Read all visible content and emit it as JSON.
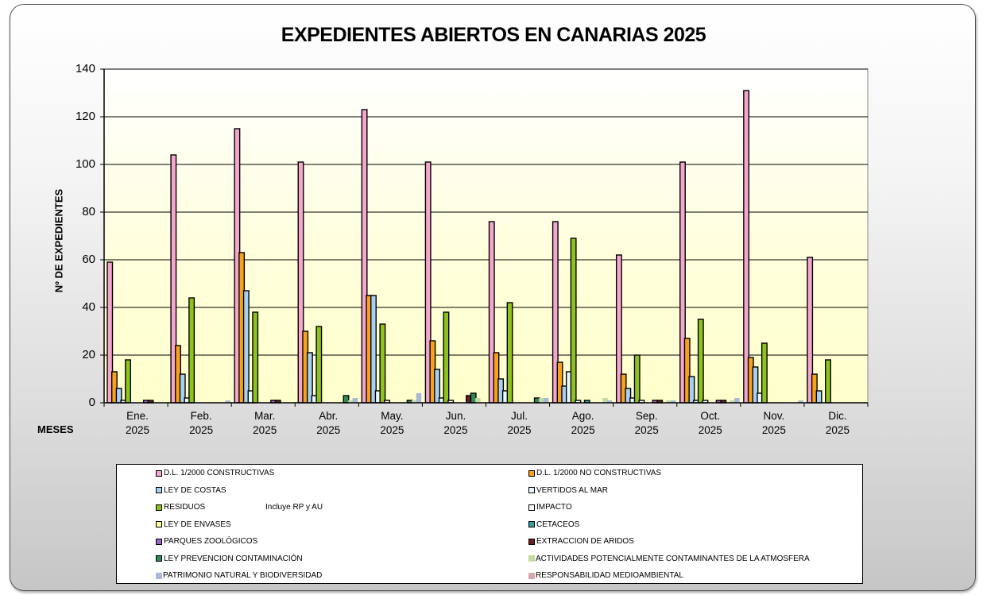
{
  "chart_data": {
    "type": "bar",
    "title": "EXPEDIENTES ABIERTOS EN CANARIAS 2025",
    "xlabel": "MESES",
    "ylabel": "Nº DE EXPEDIENTES",
    "ylim": [
      0,
      140
    ],
    "yticks": [
      0,
      20,
      40,
      60,
      80,
      100,
      120,
      140
    ],
    "grid": true,
    "legend_position": "bottom",
    "legend_note": "Incluye RP y AU",
    "categories": [
      {
        "line1": "Ene.",
        "line2": "2025"
      },
      {
        "line1": "Feb.",
        "line2": "2025"
      },
      {
        "line1": "Mar.",
        "line2": "2025"
      },
      {
        "line1": "Abr.",
        "line2": "2025"
      },
      {
        "line1": "May.",
        "line2": "2025"
      },
      {
        "line1": "Jun.",
        "line2": "2025"
      },
      {
        "line1": "Jul.",
        "line2": "2025"
      },
      {
        "line1": "Ago.",
        "line2": "2025"
      },
      {
        "line1": "Sep.",
        "line2": "2025"
      },
      {
        "line1": "Oct.",
        "line2": "2025"
      },
      {
        "line1": "Nov.",
        "line2": "2025"
      },
      {
        "line1": "Dic.",
        "line2": "2025"
      }
    ],
    "series": [
      {
        "name": "D.L. 1/2000 CONSTRUCTIVAS",
        "color": "#f4a6cf",
        "bordered": true,
        "values": [
          59,
          104,
          115,
          101,
          123,
          101,
          76,
          76,
          62,
          101,
          131,
          61
        ]
      },
      {
        "name": "D.L. 1/2000 NO CONSTRUCTIVAS",
        "color": "#f7a21b",
        "bordered": true,
        "values": [
          13,
          24,
          63,
          30,
          45,
          26,
          21,
          17,
          12,
          27,
          19,
          12
        ]
      },
      {
        "name": "LEY DE COSTAS",
        "color": "#a8d0f0",
        "bordered": true,
        "values": [
          6,
          12,
          47,
          21,
          45,
          14,
          10,
          7,
          6,
          11,
          15,
          5
        ]
      },
      {
        "name": "VERTIDOS AL MAR",
        "color": "#e8f8ff",
        "bordered": true,
        "values": [
          1,
          2,
          5,
          3,
          5,
          2,
          5,
          13,
          2,
          1,
          4,
          0
        ]
      },
      {
        "name": "RESIDUOS",
        "color": "#8dc21f",
        "bordered": true,
        "values": [
          18,
          44,
          38,
          32,
          33,
          38,
          42,
          69,
          20,
          35,
          25,
          18
        ]
      },
      {
        "name": "IMPACTO",
        "color": "#ffffff",
        "bordered": true,
        "values": [
          0,
          0,
          0,
          0,
          1,
          1,
          0,
          1,
          1,
          1,
          0,
          0
        ]
      },
      {
        "name": "LEY DE ENVASES",
        "color": "#ffff99",
        "bordered": true,
        "values": [
          0,
          0,
          0,
          0,
          0,
          0,
          0,
          0,
          0,
          0,
          0,
          0
        ]
      },
      {
        "name": "CETACEOS",
        "color": "#33a0a0",
        "bordered": true,
        "values": [
          0,
          0,
          0,
          0,
          0,
          0,
          0,
          1,
          0,
          0,
          0,
          0
        ]
      },
      {
        "name": "PARQUES ZOOLÓGICOS",
        "color": "#9966cc",
        "bordered": true,
        "values": [
          1,
          0,
          1,
          0,
          0,
          0,
          0,
          0,
          1,
          1,
          0,
          0
        ]
      },
      {
        "name": "EXTRACCION DE ARIDOS",
        "color": "#6b2020",
        "bordered": true,
        "values": [
          1,
          0,
          1,
          0,
          0,
          3,
          0,
          0,
          1,
          1,
          0,
          0
        ]
      },
      {
        "name": "LEY PREVENCION CONTAMINACIÓN",
        "color": "#2e8b57",
        "bordered": true,
        "values": [
          0,
          0,
          0,
          3,
          1,
          4,
          2,
          0,
          0,
          0,
          0,
          0
        ]
      },
      {
        "name": "ACTIVIDADES POTENCIALMENTE CONTAMINANTES DE LA ATMOSFERA",
        "color": "#c3dba0",
        "bordered": false,
        "values": [
          0,
          0,
          0,
          1,
          1,
          2,
          2,
          2,
          1,
          1,
          0,
          0
        ]
      },
      {
        "name": "PATRIMONIO NATURAL Y BIODIVERSIDAD",
        "color": "#aab8d8",
        "bordered": false,
        "values": [
          0,
          1,
          0,
          2,
          4,
          0,
          2,
          1,
          1,
          2,
          1,
          0
        ]
      },
      {
        "name": "RESPONSABILIDAD MEDIOAMBIENTAL",
        "color": "#d8a8b0",
        "bordered": false,
        "values": [
          0,
          0,
          0,
          0,
          0,
          0,
          0,
          0,
          0,
          0,
          0,
          0
        ]
      }
    ]
  },
  "legend": {
    "left_column": [
      0,
      2,
      4,
      6,
      8,
      10,
      12
    ],
    "right_column": [
      1,
      3,
      5,
      7,
      9,
      11,
      13
    ]
  },
  "colors": {
    "plot_background_top": "#ffffff",
    "plot_background_bottom": "#ffffcc",
    "gridline": "#000000"
  }
}
